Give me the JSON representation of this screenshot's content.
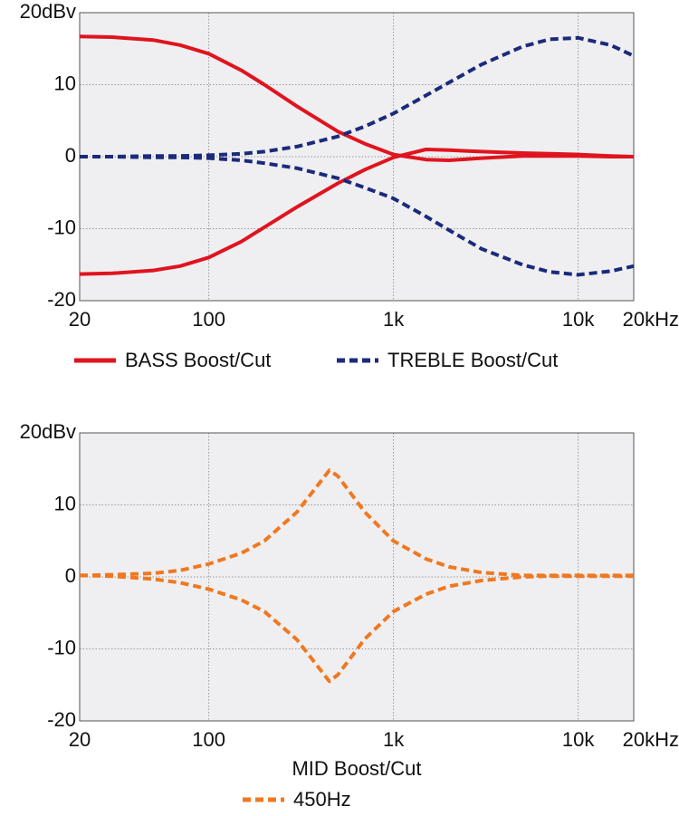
{
  "chart_data": [
    {
      "type": "line",
      "log_x": true,
      "grid": true,
      "x": [
        20,
        30,
        50,
        70,
        100,
        150,
        200,
        300,
        500,
        700,
        1000,
        1500,
        2000,
        3000,
        5000,
        7000,
        10000,
        15000,
        20000
      ],
      "xlim": [
        20,
        20000
      ],
      "xticks": [
        20,
        100,
        {
          "value": 1000,
          "label": "1k"
        },
        {
          "value": 10000,
          "label": "10k"
        },
        {
          "value": 20000,
          "label": "20kHz"
        }
      ],
      "ylim": [
        -20,
        20
      ],
      "yticks": [
        {
          "value": 20,
          "label": "20dBv"
        },
        10,
        0,
        -10,
        -20
      ],
      "series": [
        {
          "name": "BASS Boost/Cut",
          "color": "#e0141e",
          "dashed": false,
          "values": [
            [
              16.7,
              16.6,
              16.2,
              15.5,
              14.3,
              12,
              10,
              7,
              3.5,
              1.8,
              0.3,
              -0.4,
              -0.5,
              -0.2,
              0.1,
              0.1,
              0.1,
              0,
              0
            ],
            [
              -16.3,
              -16.2,
              -15.8,
              -15.2,
              -14,
              -11.8,
              -9.8,
              -7,
              -3.7,
              -1.8,
              -0.1,
              1,
              0.9,
              0.7,
              0.5,
              0.4,
              0.3,
              0.1,
              0
            ]
          ]
        },
        {
          "name": "TREBLE Boost/Cut",
          "color": "#1c2a7c",
          "dashed": true,
          "values": [
            [
              0,
              0,
              0.1,
              0.1,
              0.2,
              0.4,
              0.7,
              1.4,
              2.8,
              4.2,
              6,
              8.5,
              10.3,
              12.8,
              15.3,
              16.3,
              16.5,
              15.5,
              14
            ],
            [
              0,
              0,
              -0.1,
              -0.1,
              -0.2,
              -0.5,
              -0.9,
              -1.6,
              -3,
              -4.3,
              -5.8,
              -8.3,
              -10.2,
              -12.8,
              -15,
              -16,
              -16.4,
              -15.9,
              -15.2
            ]
          ]
        }
      ]
    },
    {
      "type": "line",
      "log_x": true,
      "grid": true,
      "xlabel": "MID Boost/Cut",
      "x": [
        20,
        30,
        50,
        70,
        100,
        150,
        200,
        300,
        450,
        500,
        700,
        1000,
        1500,
        2000,
        3000,
        5000,
        7000,
        10000,
        15000,
        20000
      ],
      "xlim": [
        20,
        20000
      ],
      "xticks": [
        20,
        100,
        {
          "value": 1000,
          "label": "1k"
        },
        {
          "value": 10000,
          "label": "10k"
        },
        {
          "value": 20000,
          "label": "20kHz"
        }
      ],
      "ylim": [
        -20,
        20
      ],
      "yticks": [
        {
          "value": 20,
          "label": "20dBv"
        },
        10,
        0,
        -10,
        -20
      ],
      "series": [
        {
          "name": "450Hz",
          "color": "#f07820",
          "dashed": true,
          "values": [
            [
              0.2,
              0.3,
              0.5,
              0.9,
              1.8,
              3.3,
              5,
              9,
              14.8,
              14,
              9,
              5,
              2.5,
              1.4,
              0.6,
              0.2,
              0.2,
              0.2,
              0.2,
              0.2
            ],
            [
              0.2,
              0.1,
              -0.3,
              -0.8,
              -1.7,
              -3.2,
              -4.8,
              -8.7,
              -14.5,
              -13.6,
              -8.6,
              -4.8,
              -2.4,
              -1.3,
              -0.5,
              0,
              0.1,
              0.1,
              0.1,
              0.1
            ]
          ]
        }
      ]
    }
  ]
}
